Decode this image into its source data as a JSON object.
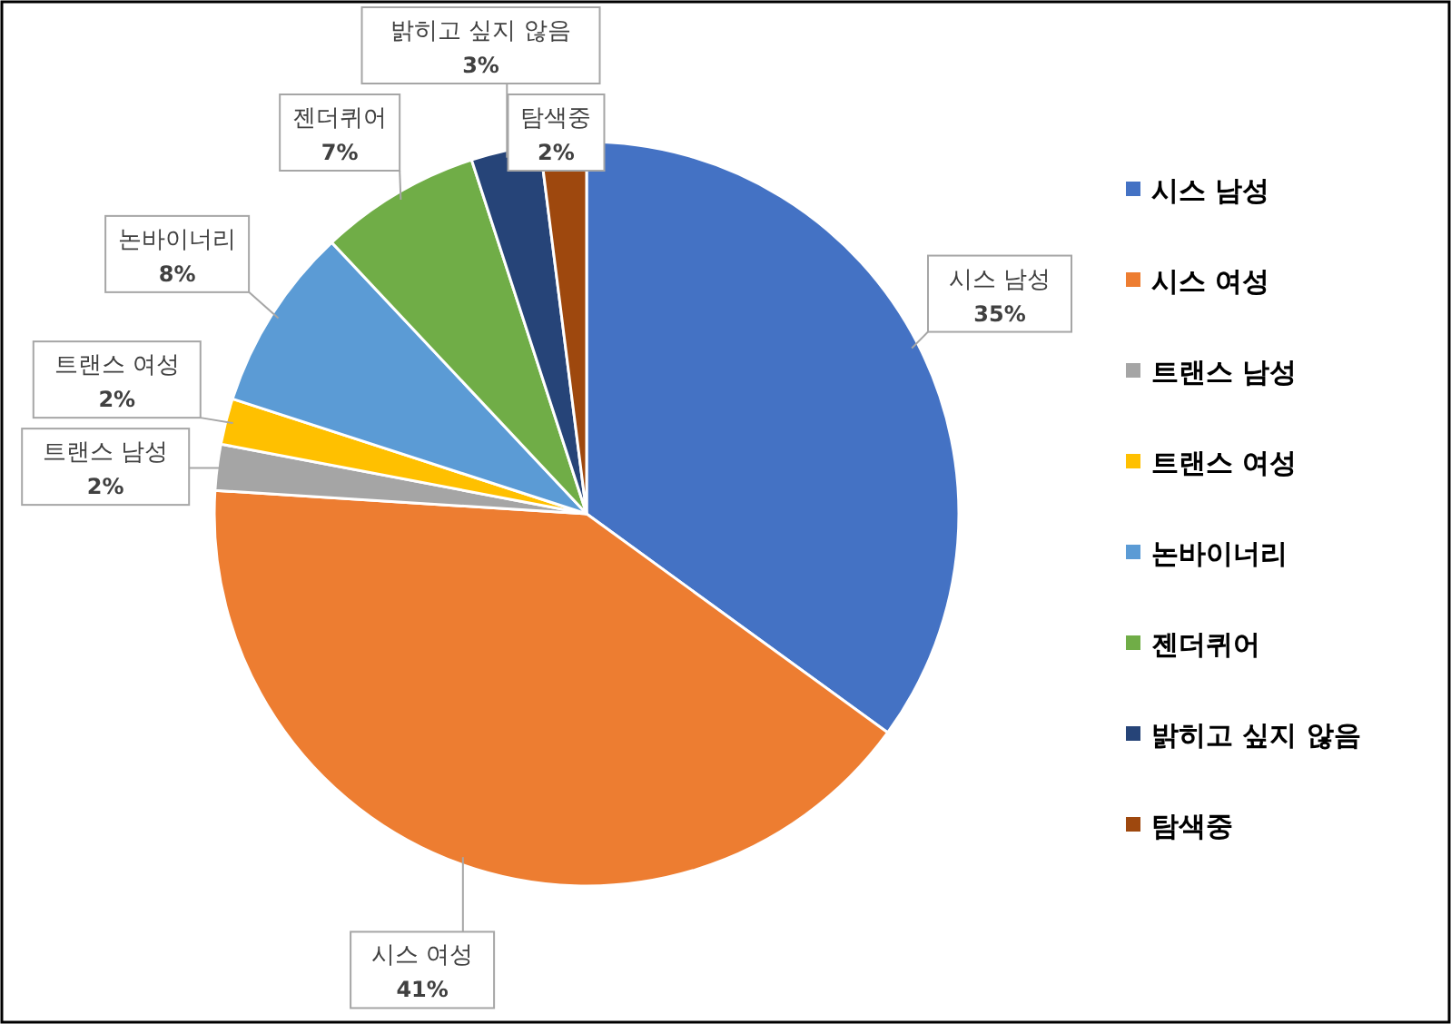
{
  "chart_data": {
    "type": "pie",
    "categories": [
      "시스 남성",
      "시스 여성",
      "트랜스 남성",
      "트랜스 여성",
      "논바이너리",
      "젠더퀴어",
      "밝히고 싶지 않음",
      "탐색중"
    ],
    "values": [
      35,
      41,
      2,
      2,
      8,
      7,
      3,
      2
    ],
    "value_labels": [
      "35%",
      "41%",
      "2%",
      "2%",
      "8%",
      "7%",
      "3%",
      "2%"
    ],
    "colors": [
      "#4472c4",
      "#ed7d31",
      "#a5a5a5",
      "#ffc000",
      "#5b9bd5",
      "#70ad47",
      "#264478",
      "#9e480e"
    ],
    "legend": "right"
  }
}
